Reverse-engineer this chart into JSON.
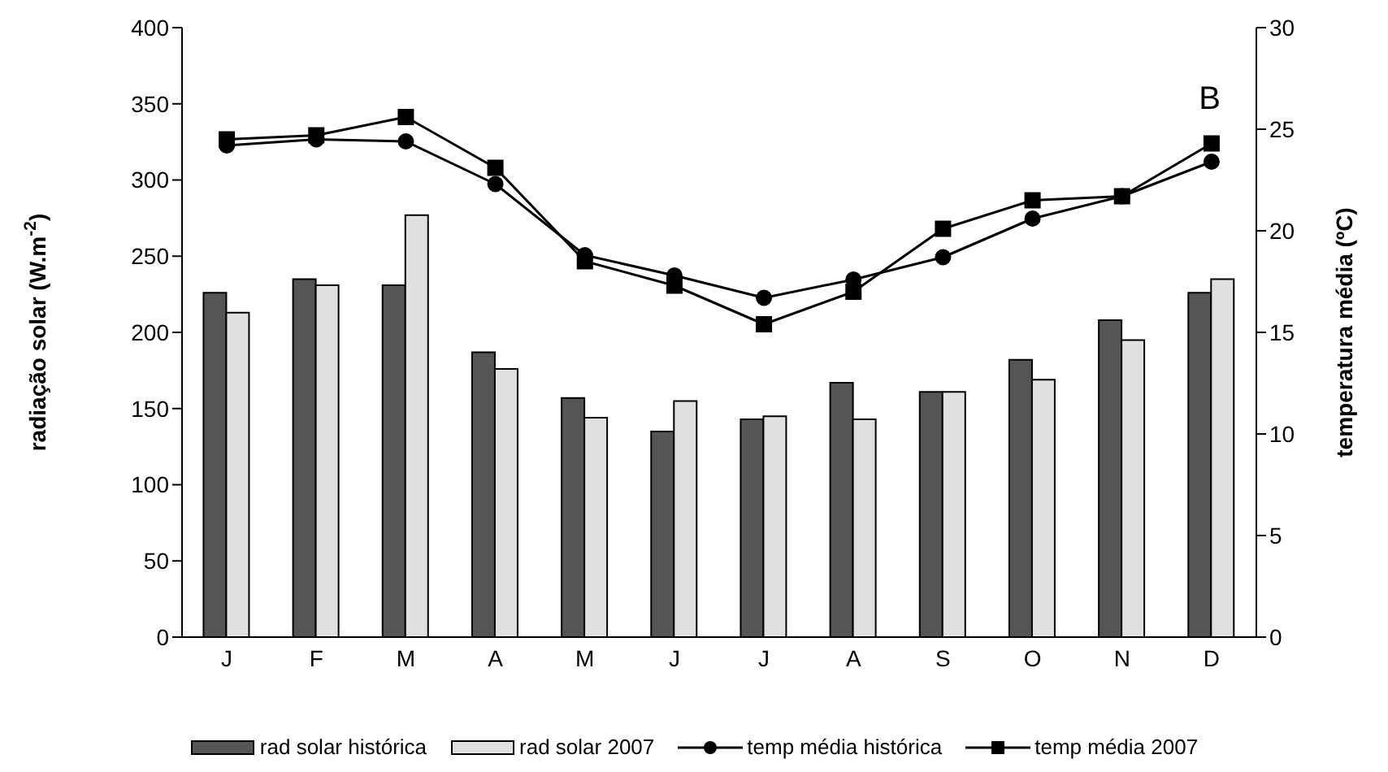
{
  "chart_data": {
    "type": "bar",
    "categories": [
      "J",
      "F",
      "M",
      "A",
      "M",
      "J",
      "J",
      "A",
      "S",
      "O",
      "N",
      "D"
    ],
    "ylabel": "radiação solar (W.m$^{-2}$)",
    "y2label": "temperatura média (ºC)",
    "ylim": [
      0,
      400
    ],
    "yticks": [
      0,
      50,
      100,
      150,
      200,
      250,
      300,
      350,
      400
    ],
    "y2lim": [
      0,
      30
    ],
    "y2ticks": [
      0,
      5,
      10,
      15,
      20,
      25,
      30
    ],
    "annotations": [
      "B"
    ],
    "legend": "bottom",
    "grid": false,
    "series": [
      {
        "name": "rad solar histórica",
        "color": "#555555",
        "values": [
          226,
          235,
          231,
          187,
          157,
          135,
          143,
          167,
          161,
          182,
          208,
          226
        ]
      },
      {
        "name": "rad solar 2007",
        "color": "#e0e0e0",
        "values": [
          213,
          231,
          277,
          176,
          144,
          155,
          145,
          143,
          161,
          169,
          195,
          235
        ]
      },
      {
        "name": "temp média histórica",
        "type": "line",
        "axis": "y2",
        "marker": "circle",
        "color": "#000000",
        "values": [
          24.2,
          24.5,
          24.4,
          22.3,
          18.8,
          17.8,
          16.7,
          17.6,
          18.7,
          20.6,
          21.7,
          23.4
        ]
      },
      {
        "name": "temp média 2007",
        "type": "line",
        "axis": "y2",
        "marker": "square",
        "color": "#000000",
        "values": [
          24.5,
          24.7,
          25.6,
          23.1,
          18.5,
          17.3,
          15.4,
          17.0,
          20.1,
          21.5,
          21.7,
          24.3
        ]
      }
    ]
  }
}
